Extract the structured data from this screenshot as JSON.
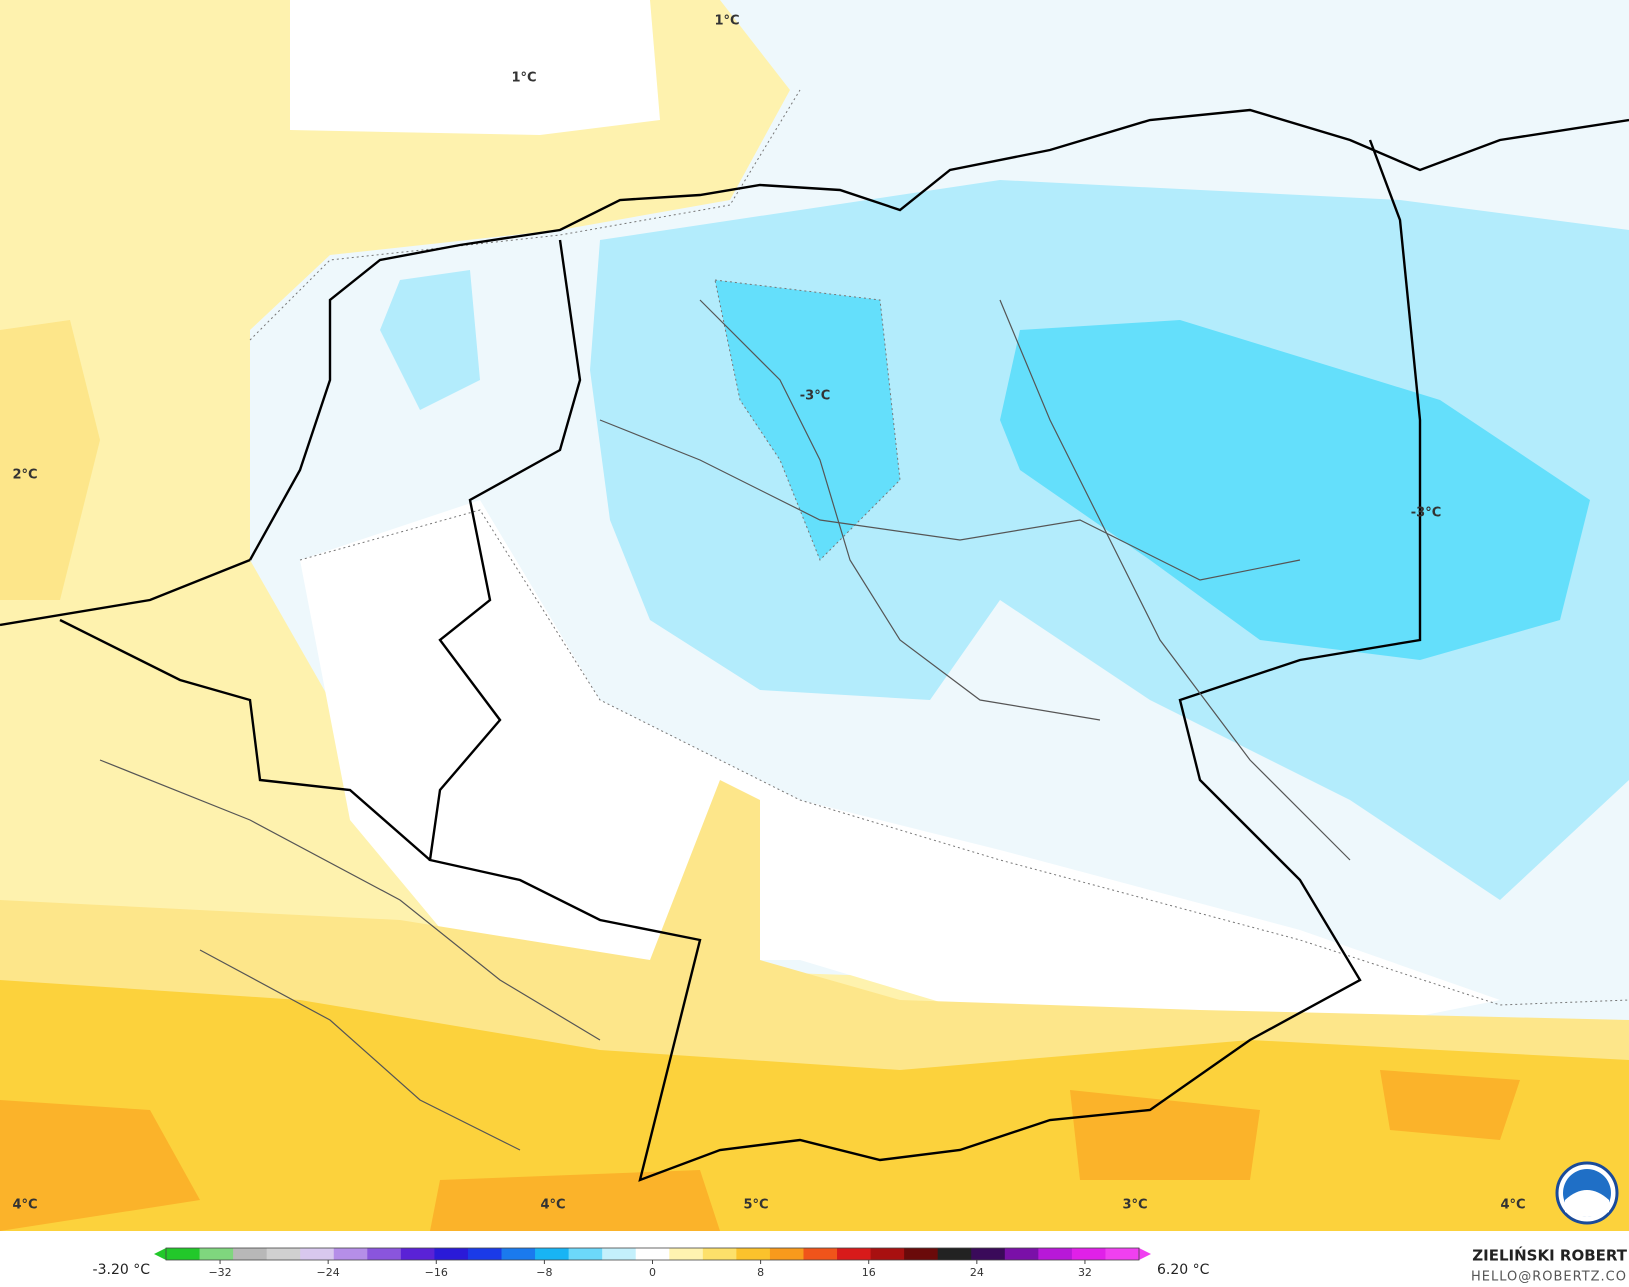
{
  "map": {
    "labels": [
      "1°C",
      "1°C",
      "2°C",
      "-3°C",
      "-3°C",
      "4°C",
      "4°C",
      "5°C",
      "3°C",
      "4°C"
    ]
  },
  "colorbar": {
    "min_label": "-3.20 °C",
    "max_label": "6.20 °C",
    "lim": [
      -36,
      36
    ],
    "ticks": [
      {
        "value": -32,
        "label": "−32"
      },
      {
        "value": -24,
        "label": "−24"
      },
      {
        "value": -16,
        "label": "−16"
      },
      {
        "value": -8,
        "label": "−8"
      },
      0,
      8,
      16,
      24,
      32
    ],
    "colors": [
      "#22c82a",
      "#7fd67e",
      "#b8b8b8",
      "#d0d0d0",
      "#d8c8ee",
      "#b58ee8",
      "#8a55dd",
      "#5a22d6",
      "#2a1ad8",
      "#1a3ae8",
      "#1a7aee",
      "#18b4f4",
      "#6cd8fa",
      "#c4f0fc",
      "#ffffff",
      "#fff3b0",
      "#fde06a",
      "#fbc22c",
      "#f89a1c",
      "#f0541a",
      "#d81a1a",
      "#a81010",
      "#6a0a0a",
      "#222222",
      "#3a0a5a",
      "#7a10a8",
      "#b818d8",
      "#e020e8",
      "#f040f0"
    ]
  },
  "credit": {
    "name": "ZIELIŃSKI ROBERT",
    "email": "HELLO@ROBERTZ.CO"
  }
}
